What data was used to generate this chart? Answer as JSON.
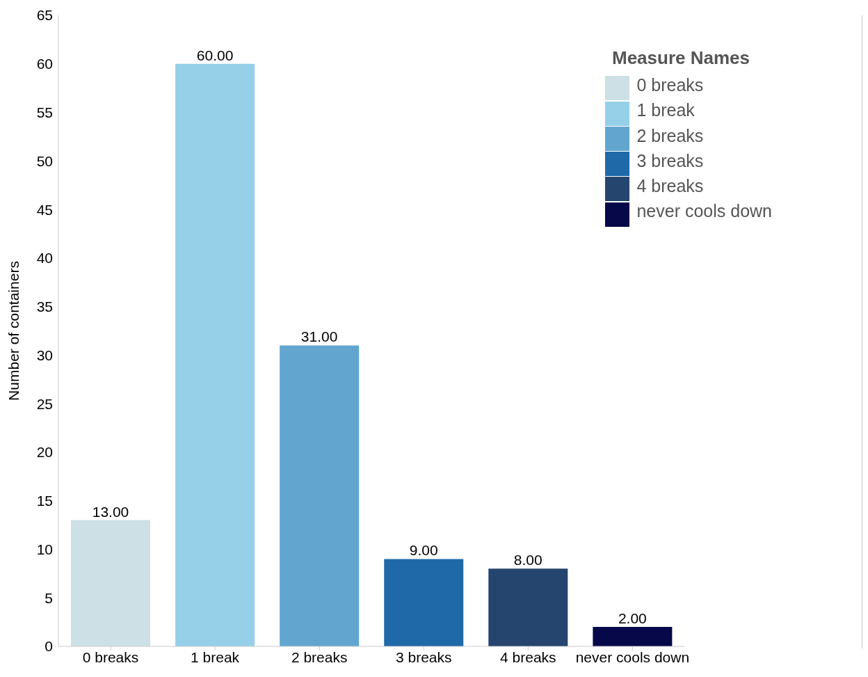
{
  "chart_data": {
    "type": "bar",
    "ylabel": "Number of containers",
    "legend_title": "Measure Names",
    "categories": [
      "0 breaks",
      "1 break",
      "2 breaks",
      "3 breaks",
      "4 breaks",
      "never cools down"
    ],
    "stacked": true,
    "series": [
      {
        "name": "0 breaks",
        "color": "#cce0e6",
        "values": [
          13,
          null,
          null,
          null,
          null,
          null
        ],
        "value_labels": [
          "13.00",
          null,
          null,
          null,
          null,
          null
        ]
      },
      {
        "name": "1 break",
        "color": "#96cfe8",
        "values": [
          null,
          60,
          null,
          null,
          null,
          null
        ],
        "value_labels": [
          null,
          "60.00",
          null,
          null,
          null,
          null
        ]
      },
      {
        "name": "2 breaks",
        "color": "#62a6cf",
        "values": [
          null,
          null,
          31,
          null,
          null,
          null
        ],
        "value_labels": [
          null,
          null,
          "31.00",
          null,
          null,
          null
        ]
      },
      {
        "name": "3 breaks",
        "color": "#1f69a8",
        "values": [
          null,
          null,
          null,
          9,
          null,
          null
        ],
        "value_labels": [
          null,
          null,
          null,
          "9.00",
          null,
          null
        ]
      },
      {
        "name": "4 breaks",
        "color": "#25456e",
        "values": [
          null,
          null,
          null,
          null,
          8,
          null
        ],
        "value_labels": [
          null,
          null,
          null,
          null,
          "8.00",
          null
        ]
      },
      {
        "name": "never cools down",
        "color": "#06084a",
        "values": [
          null,
          null,
          null,
          null,
          null,
          2
        ],
        "value_labels": [
          null,
          null,
          null,
          null,
          null,
          "2.00"
        ]
      }
    ],
    "ylim": [
      0,
      65
    ],
    "yticks": [
      0,
      5,
      10,
      15,
      20,
      25,
      30,
      35,
      40,
      45,
      50,
      55,
      60,
      65
    ],
    "legend": "top right"
  }
}
